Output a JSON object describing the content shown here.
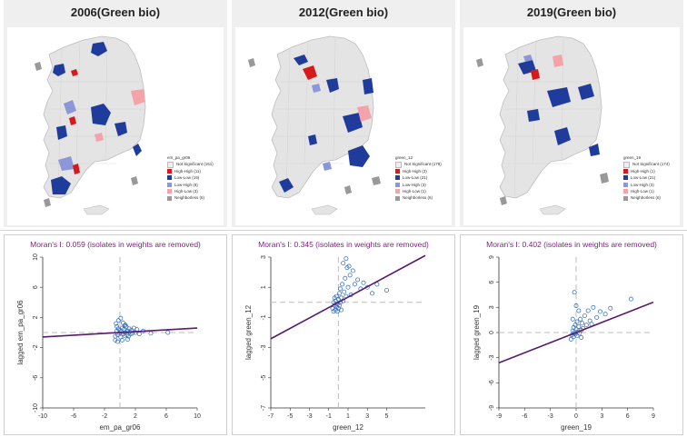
{
  "panels": [
    {
      "title": "2006(Green bio)",
      "legend_title": "em_pa_gr06",
      "legend": [
        {
          "label": "Not Significant (161)",
          "color": "#eeeeee"
        },
        {
          "label": "High-High (11)",
          "color": "#d7191c"
        },
        {
          "label": "Low-Low (19)",
          "color": "#1f3b9b"
        },
        {
          "label": "Low-High (8)",
          "color": "#8c96d8"
        },
        {
          "label": "High-Low (3)",
          "color": "#f4a3a8"
        },
        {
          "label": "Neighborless (6)",
          "color": "#999999"
        }
      ],
      "moran": "Moran's I: 0.059 (isolates in weights are removed)"
    },
    {
      "title": "2012(Green bio)",
      "legend_title": "green_12",
      "legend": [
        {
          "label": "Not Significant (178)",
          "color": "#eeeeee"
        },
        {
          "label": "High-High (3)",
          "color": "#d7191c"
        },
        {
          "label": "Low-Low (21)",
          "color": "#1f3b9b"
        },
        {
          "label": "Low-High (3)",
          "color": "#8c96d8"
        },
        {
          "label": "High-Low (1)",
          "color": "#f4a3a8"
        },
        {
          "label": "Neighborless (6)",
          "color": "#999999"
        }
      ],
      "moran": "Moran's I: 0.345 (isolates in weights are removed)"
    },
    {
      "title": "2019(Green bio)",
      "legend_title": "green_19",
      "legend": [
        {
          "label": "Not Significant (174)",
          "color": "#eeeeee"
        },
        {
          "label": "High-High (1)",
          "color": "#d7191c"
        },
        {
          "label": "Low-Low (21)",
          "color": "#1f3b9b"
        },
        {
          "label": "Low-High (3)",
          "color": "#8c96d8"
        },
        {
          "label": "High-Low (1)",
          "color": "#f4a3a8"
        },
        {
          "label": "Neighborless (6)",
          "color": "#999999"
        }
      ],
      "moran": "Moran's I: 0.402 (isolates in weights are removed)"
    }
  ],
  "colors": {
    "high_high": "#d7191c",
    "low_low": "#1f3b9b",
    "low_high": "#8c96d8",
    "high_low": "#f4a3a8",
    "neighborless": "#999999",
    "not_significant": "#e4e4e4",
    "fit_line": "#5a1a6e",
    "points": "#2b67b5"
  },
  "chart_data": [
    {
      "type": "scatter",
      "title": "Moran's I: 0.059 (isolates in weights are removed)",
      "xlabel": "em_pa_gr06",
      "ylabel": "lagged em_pa_gr06",
      "xlim": [
        -10,
        10
      ],
      "ylim": [
        -10,
        10
      ],
      "xticks": [
        -10,
        -6,
        -2,
        2,
        6,
        10
      ],
      "yticks": [
        -10,
        -6,
        -2,
        2,
        6,
        10
      ],
      "slope": 0.059,
      "points": [
        [
          -0.6,
          -0.5
        ],
        [
          -0.4,
          0.2
        ],
        [
          -0.3,
          -0.3
        ],
        [
          -0.2,
          0.5
        ],
        [
          -0.1,
          -0.1
        ],
        [
          0.0,
          0.3
        ],
        [
          0.1,
          -0.6
        ],
        [
          0.2,
          0.1
        ],
        [
          0.3,
          0.6
        ],
        [
          0.4,
          -0.2
        ],
        [
          0.5,
          0.4
        ],
        [
          0.6,
          -0.4
        ],
        [
          0.7,
          0.0
        ],
        [
          0.8,
          0.8
        ],
        [
          0.9,
          -0.3
        ],
        [
          1.0,
          0.2
        ],
        [
          1.1,
          -0.5
        ],
        [
          1.2,
          0.5
        ],
        [
          1.3,
          0.1
        ],
        [
          1.4,
          -0.2
        ],
        [
          1.5,
          0.3
        ],
        [
          1.6,
          -0.1
        ],
        [
          1.8,
          0.6
        ],
        [
          2.0,
          0.0
        ],
        [
          2.2,
          0.4
        ],
        [
          2.5,
          -0.2
        ],
        [
          -0.5,
          1.2
        ],
        [
          -0.2,
          1.6
        ],
        [
          0.1,
          1.9
        ],
        [
          0.4,
          1.3
        ],
        [
          0.7,
          1.0
        ],
        [
          -0.6,
          -1.0
        ],
        [
          -0.3,
          -1.2
        ],
        [
          0.3,
          -1.0
        ],
        [
          1.0,
          -0.9
        ],
        [
          3.0,
          0.2
        ],
        [
          4.0,
          -0.1
        ],
        [
          6.2,
          0.0
        ],
        [
          -0.4,
          0.8
        ],
        [
          0.6,
          0.9
        ]
      ]
    },
    {
      "type": "scatter",
      "title": "Moran's I: 0.345 (isolates in weights are removed)",
      "xlabel": "green_12",
      "ylabel": "lagged green_12",
      "xlim": [
        -7,
        9
      ],
      "ylim": [
        -7,
        3
      ],
      "xticks": [
        -7,
        -5,
        -3,
        -1,
        1,
        3,
        5
      ],
      "yticks": [
        -7,
        -5,
        -3,
        -1,
        1,
        3
      ],
      "slope": 0.345,
      "points": [
        [
          -0.6,
          -0.4
        ],
        [
          -0.5,
          0.0
        ],
        [
          -0.5,
          -0.6
        ],
        [
          -0.4,
          -0.2
        ],
        [
          -0.4,
          0.3
        ],
        [
          -0.3,
          -0.5
        ],
        [
          -0.3,
          0.1
        ],
        [
          -0.2,
          -0.3
        ],
        [
          -0.2,
          0.4
        ],
        [
          -0.1,
          -0.1
        ],
        [
          -0.1,
          -0.6
        ],
        [
          0.0,
          0.2
        ],
        [
          0.0,
          -0.4
        ],
        [
          0.1,
          0.6
        ],
        [
          0.1,
          -0.2
        ],
        [
          0.2,
          0.0
        ],
        [
          0.2,
          0.9
        ],
        [
          0.3,
          -0.5
        ],
        [
          0.3,
          0.3
        ],
        [
          0.4,
          1.2
        ],
        [
          0.5,
          0.1
        ],
        [
          0.6,
          0.7
        ],
        [
          0.7,
          1.6
        ],
        [
          0.8,
          0.4
        ],
        [
          0.9,
          2.3
        ],
        [
          1.0,
          1.0
        ],
        [
          1.2,
          1.8
        ],
        [
          1.3,
          0.5
        ],
        [
          1.5,
          2.1
        ],
        [
          1.7,
          1.2
        ],
        [
          2.0,
          1.5
        ],
        [
          2.3,
          0.9
        ],
        [
          2.6,
          1.3
        ],
        [
          3.0,
          1.0
        ],
        [
          3.5,
          0.6
        ],
        [
          4.0,
          1.2
        ],
        [
          5.0,
          0.8
        ],
        [
          0.5,
          2.6
        ],
        [
          0.8,
          2.9
        ],
        [
          1.1,
          2.4
        ]
      ]
    },
    {
      "type": "scatter",
      "title": "Moran's I: 0.402 (isolates in weights are removed)",
      "xlabel": "green_19",
      "ylabel": "lagged green_19",
      "xlim": [
        -9,
        9
      ],
      "ylim": [
        -9,
        9
      ],
      "xticks": [
        -9,
        -6,
        -3,
        0,
        3,
        6,
        9
      ],
      "yticks": [
        -9,
        -6,
        -3,
        0,
        3,
        6,
        9
      ],
      "slope": 0.402,
      "points": [
        [
          -0.5,
          -0.3
        ],
        [
          -0.4,
          0.2
        ],
        [
          -0.3,
          -0.5
        ],
        [
          -0.3,
          0.6
        ],
        [
          -0.2,
          0.0
        ],
        [
          -0.1,
          0.9
        ],
        [
          -0.1,
          -0.2
        ],
        [
          0.0,
          0.4
        ],
        [
          0.1,
          -0.4
        ],
        [
          0.1,
          1.3
        ],
        [
          0.2,
          0.1
        ],
        [
          0.3,
          0.7
        ],
        [
          0.4,
          -0.1
        ],
        [
          0.5,
          1.6
        ],
        [
          0.6,
          0.3
        ],
        [
          0.7,
          1.1
        ],
        [
          0.8,
          0.5
        ],
        [
          1.0,
          2.0
        ],
        [
          1.2,
          0.9
        ],
        [
          1.4,
          2.6
        ],
        [
          1.6,
          1.4
        ],
        [
          2.0,
          3.0
        ],
        [
          2.4,
          1.8
        ],
        [
          2.8,
          2.5
        ],
        [
          3.4,
          2.2
        ],
        [
          4.0,
          2.9
        ],
        [
          6.4,
          4.0
        ],
        [
          0.0,
          3.2
        ],
        [
          -0.2,
          4.8
        ],
        [
          0.3,
          2.6
        ],
        [
          -0.4,
          1.6
        ],
        [
          -0.6,
          -0.8
        ],
        [
          0.6,
          -0.6
        ],
        [
          1.8,
          1.0
        ]
      ]
    }
  ]
}
